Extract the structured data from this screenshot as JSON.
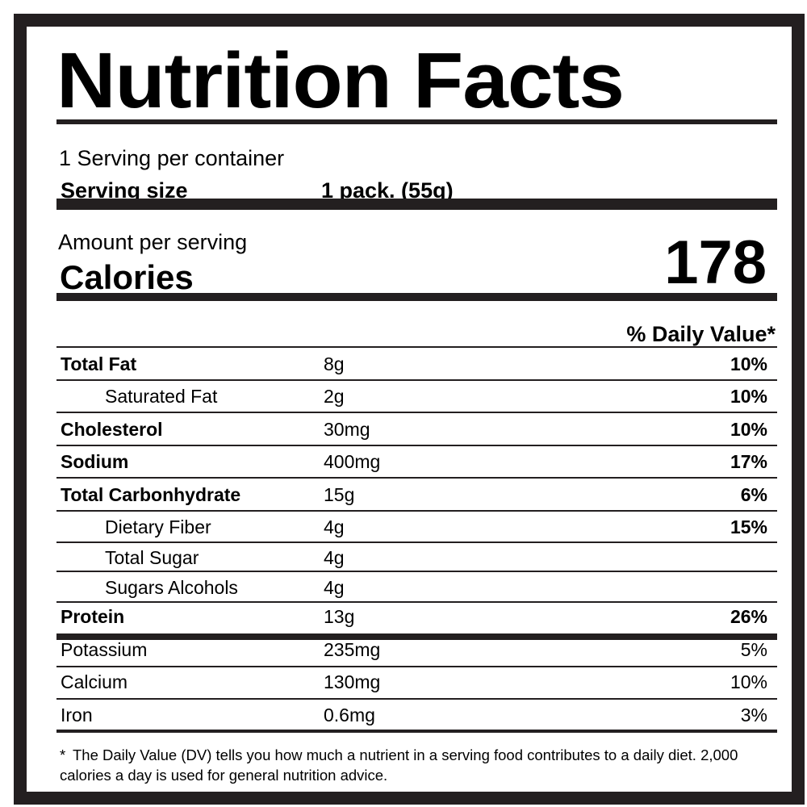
{
  "label": {
    "title": "Nutrition Facts",
    "servings_per_container": "1 Serving per container",
    "serving_size_label": "Serving size",
    "serving_size_value": "1 pack. (55g)",
    "amount_per_serving": "Amount per serving",
    "calories_label": "Calories",
    "calories_value": "178",
    "daily_value_header": "% Daily Value*",
    "nutrients": [
      {
        "name": "Total Fat",
        "amount": "8g",
        "dv": "10%"
      },
      {
        "name": "Saturated Fat",
        "amount": "2g",
        "dv": "10%"
      },
      {
        "name": "Cholesterol",
        "amount": "30mg",
        "dv": "10%"
      },
      {
        "name": "Sodium",
        "amount": "400mg",
        "dv": "17%"
      },
      {
        "name": "Total Carbonhydrate",
        "amount": "15g",
        "dv": "6%"
      },
      {
        "name": "Dietary Fiber",
        "amount": "4g",
        "dv": "15%"
      },
      {
        "name": "Total Sugar",
        "amount": "4g",
        "dv": ""
      },
      {
        "name": "Sugars Alcohols",
        "amount": "4g",
        "dv": ""
      },
      {
        "name": "Protein",
        "amount": "13g",
        "dv": "26%"
      },
      {
        "name": "Potassium",
        "amount": "235mg",
        "dv": "5%"
      },
      {
        "name": "Calcium",
        "amount": "130mg",
        "dv": "10%"
      },
      {
        "name": "Iron",
        "amount": "0.6mg",
        "dv": "3%"
      }
    ],
    "footnote_marker": "*",
    "footnote_text": "The  Daily Value (DV) tells you how much a nutrient in a serving food contributes to a daily diet. 2,000 calories a day is used for general nutrition advice."
  }
}
